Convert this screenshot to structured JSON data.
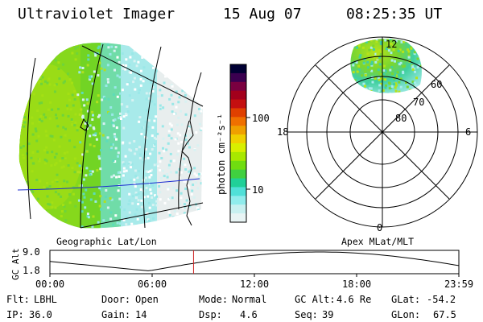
{
  "header": {
    "title": "Ultraviolet Imager",
    "date": "15 Aug 07",
    "time": "08:25:35 UT"
  },
  "colorbar": {
    "unit_label": "photon cm⁻²s⁻¹",
    "ticks": [
      {
        "label": "100",
        "value": 100
      },
      {
        "label": "10",
        "value": 10
      }
    ],
    "colors": [
      "#000033",
      "#3a0050",
      "#7a0040",
      "#a3001c",
      "#c41010",
      "#e04000",
      "#f07000",
      "#f0a000",
      "#f0d000",
      "#d8ef00",
      "#a8e800",
      "#70dd10",
      "#40d040",
      "#20d098",
      "#50e0d8",
      "#90ecec",
      "#c8f0f0",
      "#e8f4f4"
    ]
  },
  "left_map": {
    "caption": "Geographic Lat/Lon"
  },
  "right_map": {
    "caption": "Apex MLat/MLT",
    "mlt_labels": {
      "top": "12",
      "left": "18",
      "right": "6",
      "bottom": "0"
    },
    "lat_labels": [
      "60",
      "70",
      "80"
    ]
  },
  "altitude_plot": {
    "ylabel": "GC Alt",
    "y_ticks": [
      "9.0",
      "1.8"
    ],
    "x_ticks": [
      "00:00",
      "06:00",
      "12:00",
      "18:00",
      "23:59"
    ],
    "current_time_hours": 8.43,
    "marker_color": "#cc2222"
  },
  "status": {
    "filter": {
      "label": "Flt:",
      "value": "LBHL"
    },
    "ip": {
      "label": "IP:",
      "value": "36.0"
    },
    "door": {
      "label": "Door:",
      "value": "Open"
    },
    "gain": {
      "label": "Gain:",
      "value": "14"
    },
    "mode": {
      "label": "Mode:",
      "value": "Normal"
    },
    "dsp": {
      "label": "Dsp:",
      "value": "4.6"
    },
    "gc_alt": {
      "label": "GC Alt:",
      "value": "4.6 Re"
    },
    "seq": {
      "label": "Seq:",
      "value": "39"
    },
    "glat": {
      "label": "GLat:",
      "value": "-54.2"
    },
    "glon": {
      "label": "GLon:",
      "value": "67.5"
    }
  }
}
